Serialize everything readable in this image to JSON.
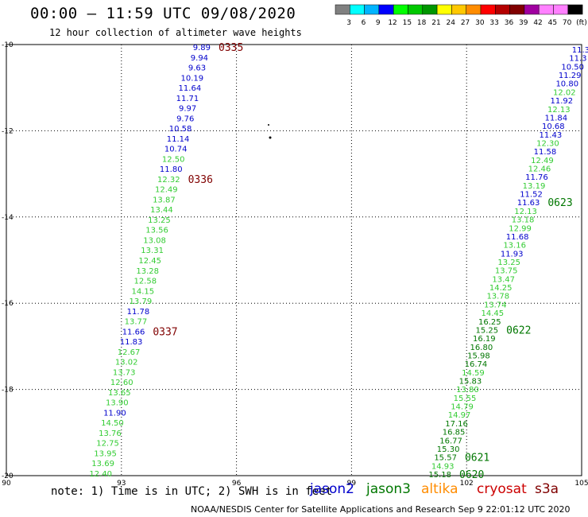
{
  "header": {
    "title": "00:00 – 11:59 UTC 09/08/2020",
    "subtitle": "12 hour collection of altimeter wave heights"
  },
  "colorbar": {
    "colors": [
      "#808080",
      "#00ffff",
      "#00b4ff",
      "#0000ff",
      "#00ff00",
      "#00c800",
      "#009600",
      "#ffff00",
      "#ffc800",
      "#ff8c00",
      "#ff0000",
      "#b40000",
      "#800000",
      "#a000a0",
      "#ff80ff",
      "#ff80ff",
      "#000000"
    ],
    "labels": [
      "3",
      "6",
      "9",
      "12",
      "15",
      "18",
      "21",
      "24",
      "27",
      "30",
      "33",
      "36",
      "39",
      "42",
      "45",
      "70",
      "(ft)"
    ]
  },
  "map": {
    "lon_range": [
      90,
      105
    ],
    "lat_range": [
      -20,
      -10
    ],
    "x_ticks": [
      "90",
      "93",
      "96",
      "99",
      "102",
      "105"
    ],
    "y_ticks": [
      "-10",
      "-12",
      "-14",
      "-16",
      "-18",
      "-20"
    ],
    "grid": "dotted"
  },
  "colors": {
    "jason2": "#0000cc",
    "jason3_light": "#33cc33",
    "jason3_dark": "#007700",
    "altika": "#ff8c00",
    "cryosat": "#cc0000",
    "s3a": "#800000"
  },
  "track_left": [
    {
      "v": "9.89",
      "c": "#0000cc"
    },
    {
      "v": "9.94",
      "c": "#0000cc"
    },
    {
      "v": "9.63",
      "c": "#0000cc"
    },
    {
      "v": "10.19",
      "c": "#0000cc"
    },
    {
      "v": "11.64",
      "c": "#0000cc"
    },
    {
      "v": "11.71",
      "c": "#0000cc"
    },
    {
      "v": "9.97",
      "c": "#0000cc"
    },
    {
      "v": "9.76",
      "c": "#0000cc"
    },
    {
      "v": "10.58",
      "c": "#0000cc"
    },
    {
      "v": "11.14",
      "c": "#0000cc"
    },
    {
      "v": "10.74",
      "c": "#0000cc"
    },
    {
      "v": "12.50",
      "c": "#33cc33"
    },
    {
      "v": "11.80",
      "c": "#0000cc"
    },
    {
      "v": "12.32",
      "c": "#33cc33"
    },
    {
      "v": "12.49",
      "c": "#33cc33"
    },
    {
      "v": "13.87",
      "c": "#33cc33"
    },
    {
      "v": "13.44",
      "c": "#33cc33"
    },
    {
      "v": "13.25",
      "c": "#33cc33"
    },
    {
      "v": "13.56",
      "c": "#33cc33"
    },
    {
      "v": "13.08",
      "c": "#33cc33"
    },
    {
      "v": "13.31",
      "c": "#33cc33"
    },
    {
      "v": "12.45",
      "c": "#33cc33"
    },
    {
      "v": "13.28",
      "c": "#33cc33"
    },
    {
      "v": "12.58",
      "c": "#33cc33"
    },
    {
      "v": "14.15",
      "c": "#33cc33"
    },
    {
      "v": "13.79",
      "c": "#33cc33"
    },
    {
      "v": "11.78",
      "c": "#0000cc"
    },
    {
      "v": "13.77",
      "c": "#33cc33"
    },
    {
      "v": "11.66",
      "c": "#0000cc"
    },
    {
      "v": "11.83",
      "c": "#0000cc"
    },
    {
      "v": "12.67",
      "c": "#33cc33"
    },
    {
      "v": "13.02",
      "c": "#33cc33"
    },
    {
      "v": "13.73",
      "c": "#33cc33"
    },
    {
      "v": "12.60",
      "c": "#33cc33"
    },
    {
      "v": "13.65",
      "c": "#33cc33"
    },
    {
      "v": "13.90",
      "c": "#33cc33"
    },
    {
      "v": "11.90",
      "c": "#0000cc"
    },
    {
      "v": "14.50",
      "c": "#33cc33"
    },
    {
      "v": "13.76",
      "c": "#33cc33"
    },
    {
      "v": "12.75",
      "c": "#33cc33"
    },
    {
      "v": "13.95",
      "c": "#33cc33"
    },
    {
      "v": "13.69",
      "c": "#33cc33"
    },
    {
      "v": "12.40",
      "c": "#33cc33"
    }
  ],
  "track_left_times": [
    {
      "t": "0335",
      "c": "#800000",
      "row": 0
    },
    {
      "t": "0336",
      "c": "#800000",
      "row": 13
    },
    {
      "t": "0337",
      "c": "#800000",
      "row": 28
    }
  ],
  "track_right": [
    {
      "v": "11.3",
      "c": "#0000cc"
    },
    {
      "v": "11.3",
      "c": "#0000cc"
    },
    {
      "v": "10.50",
      "c": "#0000cc"
    },
    {
      "v": "11.29",
      "c": "#0000cc"
    },
    {
      "v": "10.80",
      "c": "#0000cc"
    },
    {
      "v": "12.02",
      "c": "#33cc33"
    },
    {
      "v": "11.92",
      "c": "#0000cc"
    },
    {
      "v": "12.13",
      "c": "#33cc33"
    },
    {
      "v": "11.84",
      "c": "#0000cc"
    },
    {
      "v": "10.68",
      "c": "#0000cc"
    },
    {
      "v": "11.43",
      "c": "#0000cc"
    },
    {
      "v": "12.30",
      "c": "#33cc33"
    },
    {
      "v": "11.58",
      "c": "#0000cc"
    },
    {
      "v": "12.49",
      "c": "#33cc33"
    },
    {
      "v": "12.46",
      "c": "#33cc33"
    },
    {
      "v": "11.76",
      "c": "#0000cc"
    },
    {
      "v": "13.19",
      "c": "#33cc33"
    },
    {
      "v": "11.52",
      "c": "#0000cc"
    },
    {
      "v": "11.63",
      "c": "#0000cc"
    },
    {
      "v": "12.13",
      "c": "#33cc33"
    },
    {
      "v": "13.18",
      "c": "#33cc33"
    },
    {
      "v": "12.99",
      "c": "#33cc33"
    },
    {
      "v": "11.68",
      "c": "#0000cc"
    },
    {
      "v": "13.16",
      "c": "#33cc33"
    },
    {
      "v": "11.93",
      "c": "#0000cc"
    },
    {
      "v": "13.25",
      "c": "#33cc33"
    },
    {
      "v": "13.75",
      "c": "#33cc33"
    },
    {
      "v": "13.47",
      "c": "#33cc33"
    },
    {
      "v": "14.25",
      "c": "#33cc33"
    },
    {
      "v": "13.78",
      "c": "#33cc33"
    },
    {
      "v": "13.74",
      "c": "#33cc33"
    },
    {
      "v": "14.45",
      "c": "#33cc33"
    },
    {
      "v": "16.25",
      "c": "#007700"
    },
    {
      "v": "15.25",
      "c": "#007700"
    },
    {
      "v": "16.19",
      "c": "#007700"
    },
    {
      "v": "16.80",
      "c": "#007700"
    },
    {
      "v": "15.98",
      "c": "#007700"
    },
    {
      "v": "16.74",
      "c": "#007700"
    },
    {
      "v": "14.59",
      "c": "#33cc33"
    },
    {
      "v": "15.83",
      "c": "#007700"
    },
    {
      "v": "13.80",
      "c": "#33cc33"
    },
    {
      "v": "15.55",
      "c": "#33cc33"
    },
    {
      "v": "14.79",
      "c": "#33cc33"
    },
    {
      "v": "14.97",
      "c": "#33cc33"
    },
    {
      "v": "17.16",
      "c": "#007700"
    },
    {
      "v": "16.85",
      "c": "#007700"
    },
    {
      "v": "16.77",
      "c": "#007700"
    },
    {
      "v": "15.30",
      "c": "#007700"
    },
    {
      "v": "15.57",
      "c": "#007700"
    },
    {
      "v": "14.93",
      "c": "#33cc33"
    },
    {
      "v": "15.18",
      "c": "#007700"
    }
  ],
  "track_right_times": [
    {
      "t": "0623",
      "c": "#007700",
      "row": 18
    },
    {
      "t": "0622",
      "c": "#007700",
      "row": 33
    },
    {
      "t": "0621",
      "c": "#007700",
      "row": 48
    },
    {
      "t": "0620",
      "c": "#007700",
      "row": 50
    }
  ],
  "note": "note: 1) Time is in UTC; 2) SWH is in feet",
  "legend": [
    {
      "name": "jason2",
      "color": "#0000cc"
    },
    {
      "name": "jason3",
      "color": "#007700"
    },
    {
      "name": "altika",
      "color": "#ff8c00"
    },
    {
      "name": "cryosat",
      "color": "#cc0000"
    },
    {
      "name": "s3a",
      "color": "#800000"
    }
  ],
  "credit": "NOAA/NESDIS Center for Satellite Applications and Research    Sep  9 22:01:12 UTC 2020"
}
